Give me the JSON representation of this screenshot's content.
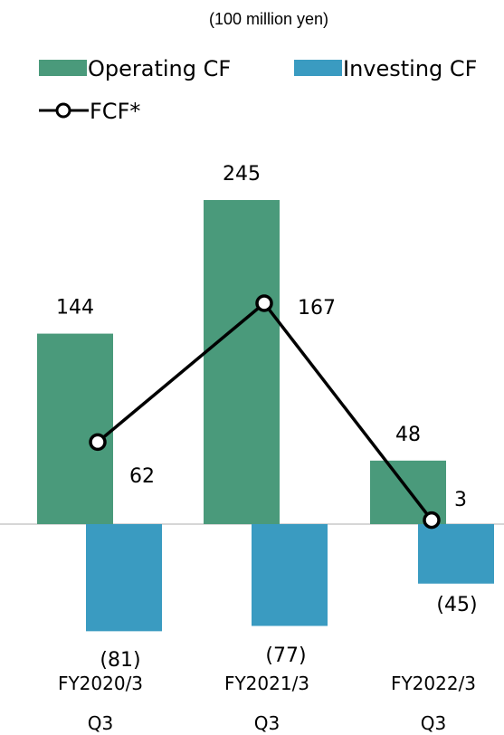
{
  "chart_data": {
    "type": "bar",
    "unit_label": "(100 million yen)",
    "categories": [
      [
        "FY2020/3",
        "Q3"
      ],
      [
        "FY2021/3",
        "Q3"
      ],
      [
        "FY2022/3",
        "Q3"
      ]
    ],
    "series": [
      {
        "name": "Operating CF",
        "kind": "bar",
        "color": "#4a9a7b",
        "values": [
          144,
          245,
          48
        ],
        "labels": [
          "144",
          "245",
          "48"
        ]
      },
      {
        "name": "Investing CF",
        "kind": "bar",
        "color": "#3a9bc1",
        "values": [
          -81,
          -77,
          -45
        ],
        "labels": [
          "(81)",
          "(77)",
          "(45)"
        ]
      },
      {
        "name": "FCF*",
        "kind": "line",
        "color": "#000000",
        "values": [
          62,
          167,
          3
        ],
        "labels": [
          "62",
          "167",
          "3"
        ]
      }
    ],
    "axis_line_color": "#c8c8c8",
    "legend_position": "top"
  }
}
